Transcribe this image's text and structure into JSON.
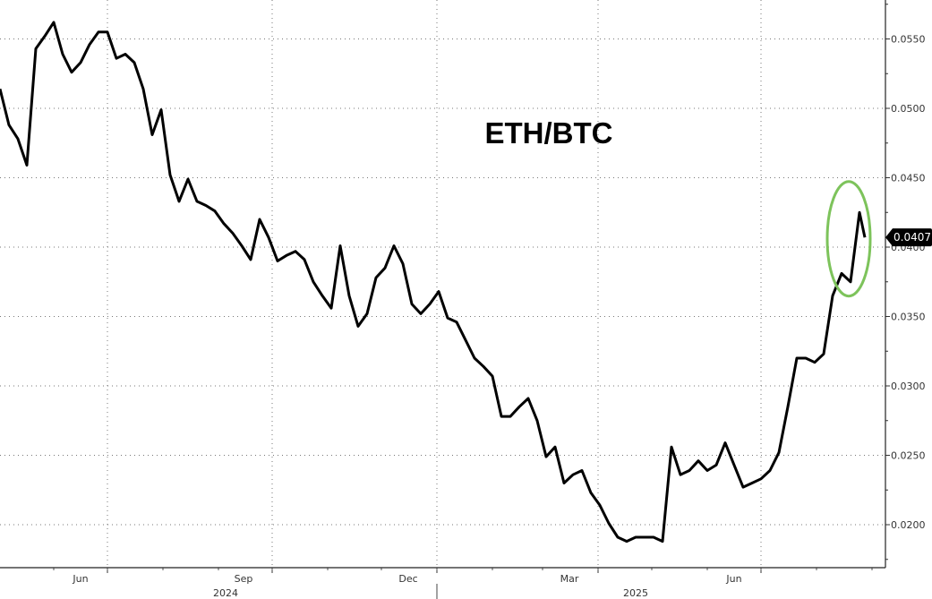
{
  "chart_data": {
    "type": "line",
    "title": "ETH/BTC",
    "xlabel": "",
    "ylabel": "",
    "y_axis_position": "right",
    "ylim": [
      0.0174,
      0.0577
    ],
    "xlim": [
      "2024-05-02",
      "2025-09-07"
    ],
    "y_ticks": [
      "0.0200",
      "0.0250",
      "0.0300",
      "0.0350",
      "0.0400",
      "0.0450",
      "0.0500",
      "0.0550"
    ],
    "x_month_labels": [
      {
        "label": "Jun",
        "date": "2024-06-16"
      },
      {
        "label": "Sep",
        "date": "2024-09-15"
      },
      {
        "label": "Dec",
        "date": "2024-12-16"
      },
      {
        "label": "Mar",
        "date": "2025-03-16"
      },
      {
        "label": "Jun",
        "date": "2025-06-16"
      }
    ],
    "x_year_labels": [
      {
        "label": "2024",
        "date": "2024-09-05"
      },
      {
        "label": "2025",
        "date": "2025-04-22"
      }
    ],
    "grid": true,
    "grid_style": "dotted",
    "line_color": "#000000",
    "last_value": {
      "label": "0.0407",
      "value": 0.0407
    },
    "annotation": {
      "shape": "ellipse",
      "color": "#7dc35b",
      "date_center": "2025-08-19",
      "value_range": [
        0.0366,
        0.0446
      ]
    },
    "series": [
      {
        "x": [
          "2024-05-02",
          "2024-05-07",
          "2024-05-12",
          "2024-05-17",
          "2024-05-22",
          "2024-05-27",
          "2024-06-01",
          "2024-06-06",
          "2024-06-11",
          "2024-06-16",
          "2024-06-21",
          "2024-06-26",
          "2024-07-01",
          "2024-07-06",
          "2024-07-11",
          "2024-07-16",
          "2024-07-21",
          "2024-07-26",
          "2024-07-31",
          "2024-08-05",
          "2024-08-10",
          "2024-08-15",
          "2024-08-20",
          "2024-08-25",
          "2024-08-30",
          "2024-09-04",
          "2024-09-09",
          "2024-09-14",
          "2024-09-19",
          "2024-09-24",
          "2024-09-29",
          "2024-10-04",
          "2024-10-09",
          "2024-10-14",
          "2024-10-19",
          "2024-10-24",
          "2024-10-29",
          "2024-11-03",
          "2024-11-08",
          "2024-11-13",
          "2024-11-18",
          "2024-11-23",
          "2024-11-28",
          "2024-12-03",
          "2024-12-08",
          "2024-12-13",
          "2024-12-18",
          "2024-12-23",
          "2024-12-28",
          "2025-01-02",
          "2025-01-07",
          "2025-01-12",
          "2025-01-17",
          "2025-01-22",
          "2025-01-27",
          "2025-02-01",
          "2025-02-06",
          "2025-02-11",
          "2025-02-16",
          "2025-02-21",
          "2025-02-26",
          "2025-03-03",
          "2025-03-08",
          "2025-03-13",
          "2025-03-18",
          "2025-03-23",
          "2025-03-28",
          "2025-04-02",
          "2025-04-07",
          "2025-04-12",
          "2025-04-17",
          "2025-04-22",
          "2025-04-27",
          "2025-05-02",
          "2025-05-07",
          "2025-05-12",
          "2025-05-17",
          "2025-05-22",
          "2025-05-27",
          "2025-06-01",
          "2025-06-06",
          "2025-06-11",
          "2025-06-16",
          "2025-06-21",
          "2025-06-26",
          "2025-07-01",
          "2025-07-06",
          "2025-07-11",
          "2025-07-16",
          "2025-07-21",
          "2025-07-26",
          "2025-07-31",
          "2025-08-05",
          "2025-08-10",
          "2025-08-15",
          "2025-08-20",
          "2025-08-25",
          "2025-08-28"
        ],
        "y": [
          0.0514,
          0.0488,
          0.0478,
          0.0459,
          0.0543,
          0.0552,
          0.0562,
          0.0539,
          0.0526,
          0.0533,
          0.0546,
          0.0555,
          0.0555,
          0.0536,
          0.0539,
          0.0533,
          0.0514,
          0.0481,
          0.0499,
          0.0452,
          0.0433,
          0.0449,
          0.0433,
          0.043,
          0.0426,
          0.0417,
          0.041,
          0.0401,
          0.0391,
          0.042,
          0.0407,
          0.039,
          0.0394,
          0.0397,
          0.0391,
          0.0375,
          0.0365,
          0.0356,
          0.0401,
          0.0365,
          0.0343,
          0.0352,
          0.0378,
          0.0385,
          0.0401,
          0.0388,
          0.0359,
          0.0352,
          0.0359,
          0.0368,
          0.0349,
          0.0346,
          0.0333,
          0.032,
          0.0314,
          0.0307,
          0.0278,
          0.0278,
          0.0285,
          0.0291,
          0.0275,
          0.0249,
          0.0256,
          0.023,
          0.0236,
          0.0239,
          0.0223,
          0.0214,
          0.0201,
          0.0191,
          0.0188,
          0.0191,
          0.0191,
          0.0191,
          0.0188,
          0.0256,
          0.0236,
          0.0239,
          0.0246,
          0.0239,
          0.0243,
          0.0259,
          0.0243,
          0.0227,
          0.023,
          0.0233,
          0.0239,
          0.0252,
          0.0285,
          0.032,
          0.032,
          0.0317,
          0.0323,
          0.0365,
          0.0381,
          0.0375,
          0.0425,
          0.0407
        ]
      }
    ]
  }
}
